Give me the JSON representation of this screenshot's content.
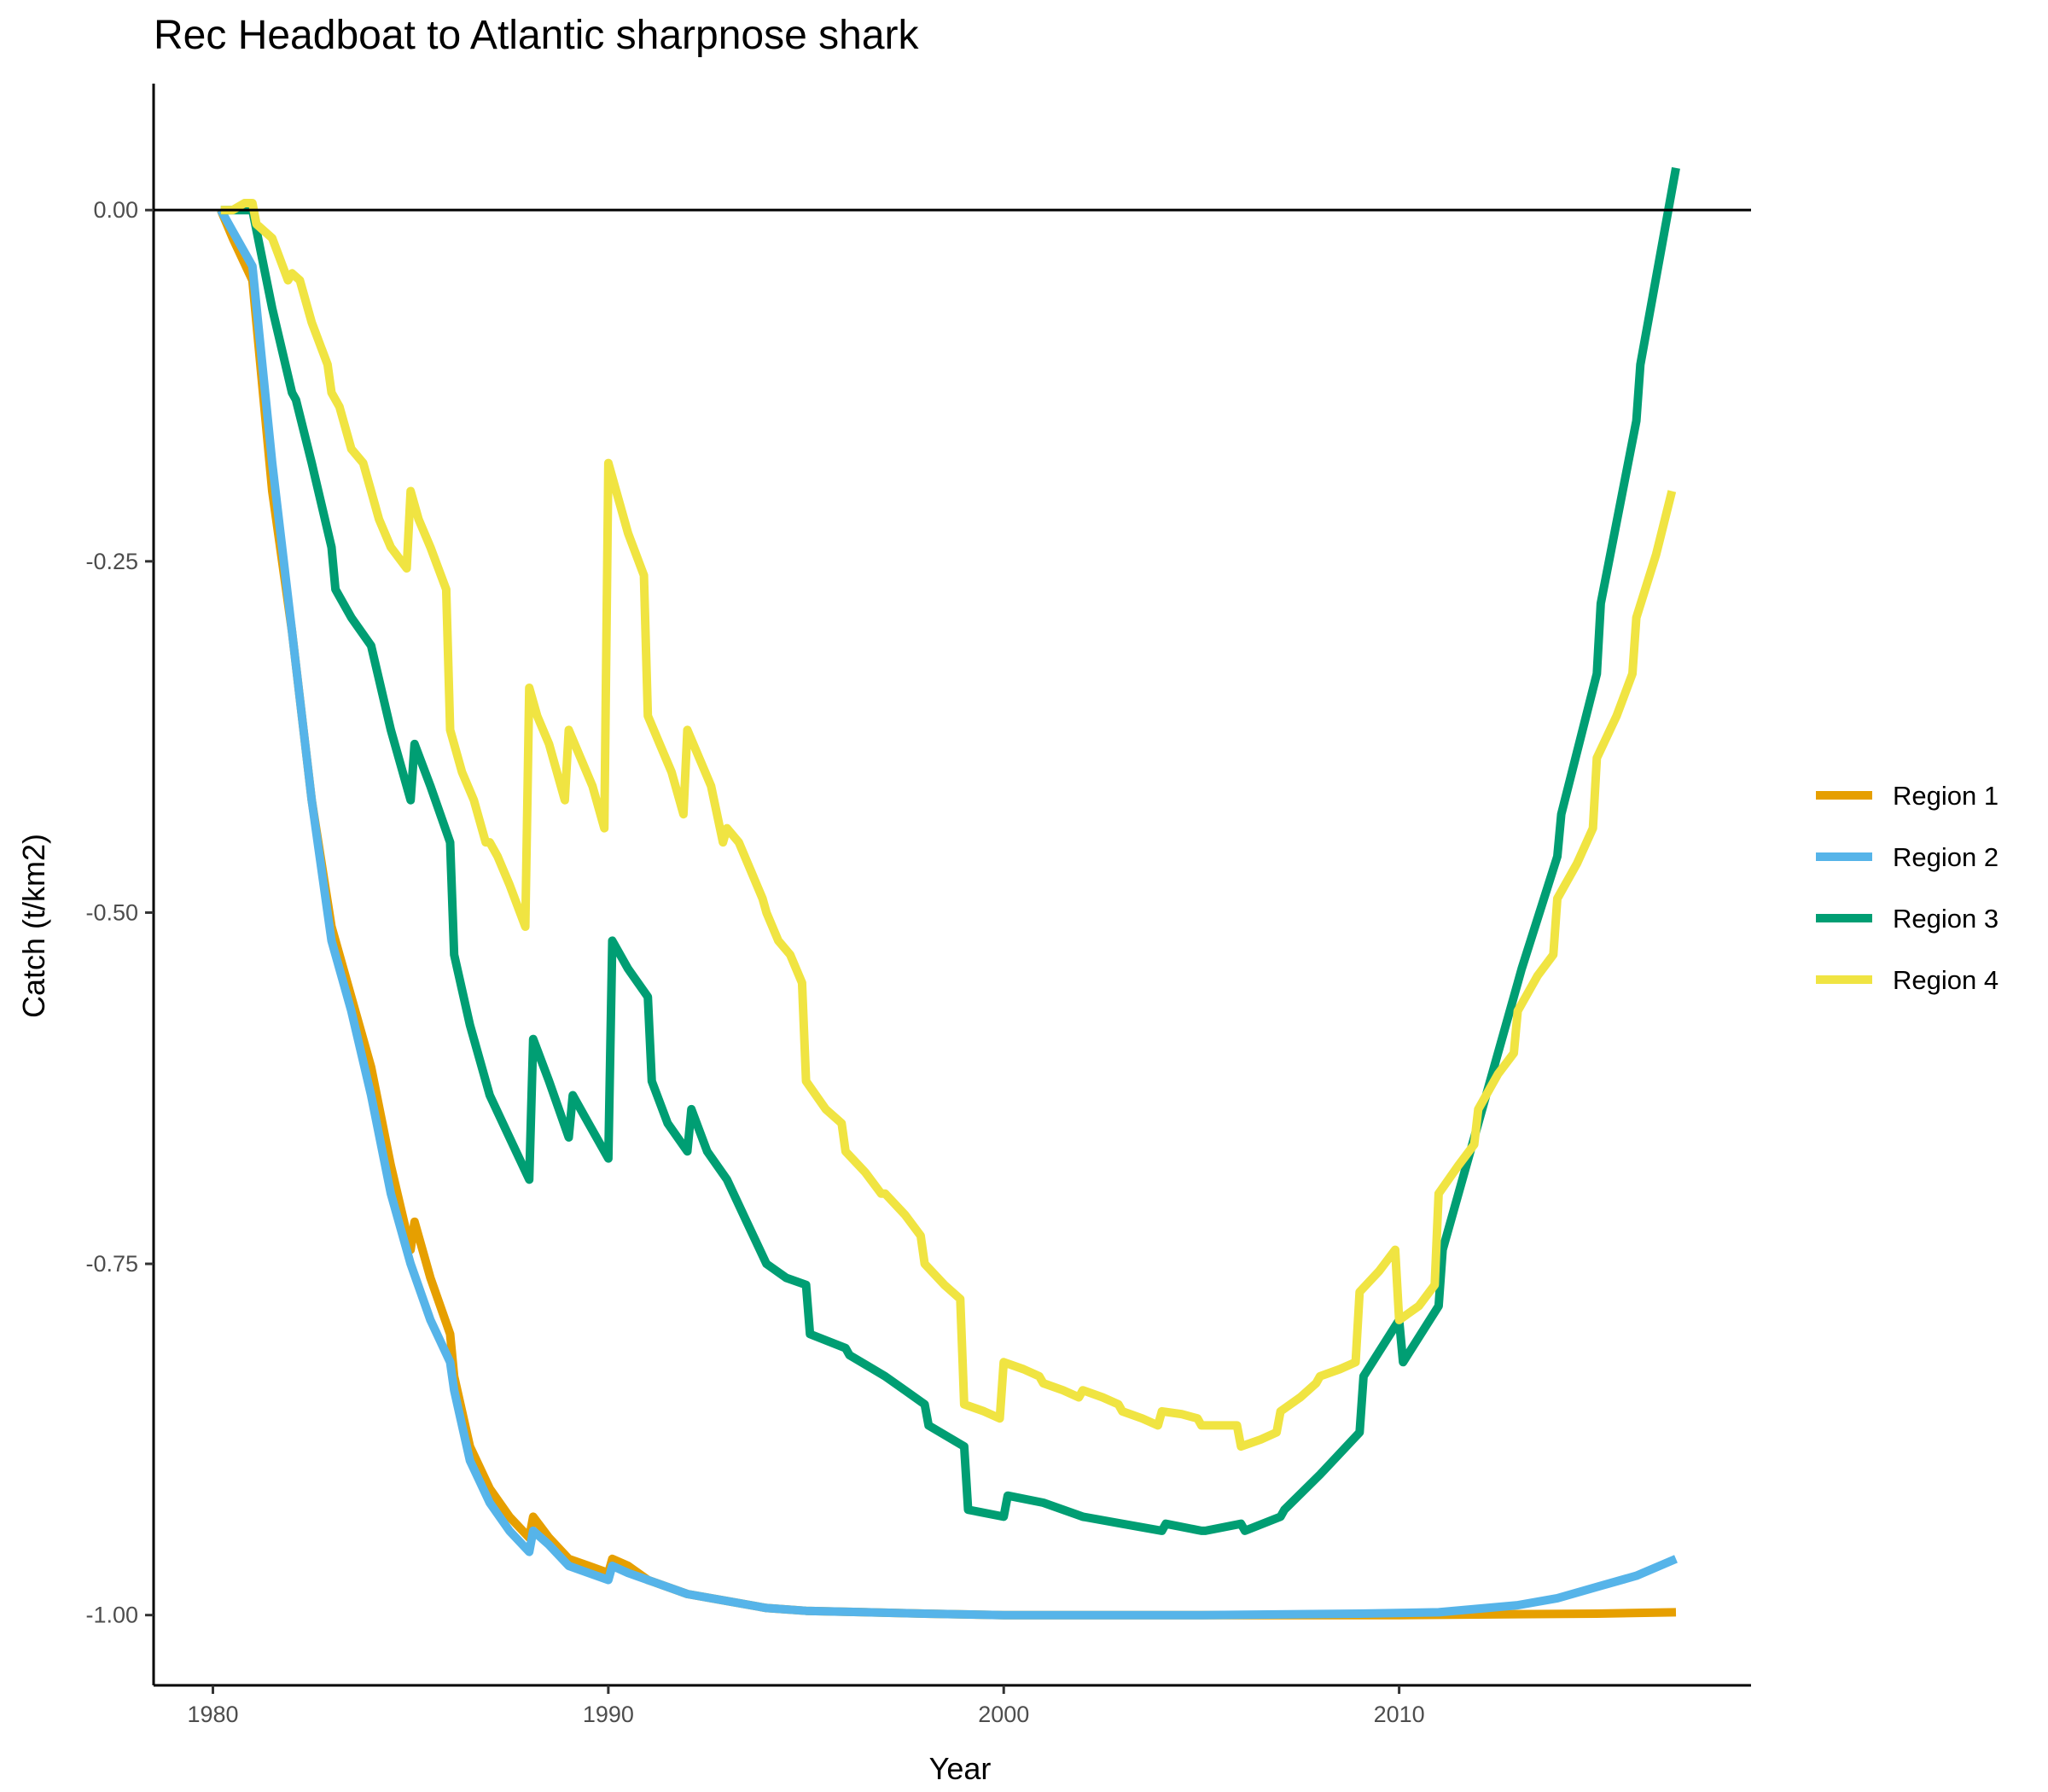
{
  "chart_data": {
    "type": "line",
    "title": "Rec Headboat to Atlantic sharpnose shark",
    "xlabel": "Year",
    "ylabel": "Catch (t/km2)",
    "xlim": [
      1978.5,
      2018.9
    ],
    "ylim": [
      -1.05,
      0.09
    ],
    "x_ticks": [
      1980,
      1990,
      2000,
      2010
    ],
    "y_ticks": [
      0.0,
      -0.25,
      -0.5,
      -0.75,
      -1.0
    ],
    "y_tick_labels": [
      "0.00",
      "-0.25",
      "-0.50",
      "-0.75",
      "-1.00"
    ],
    "reference_line_y": 0,
    "legend_position": "right",
    "series": [
      {
        "name": "Region 1",
        "color": "#E69F00",
        "points": [
          [
            1980.2,
            0.0
          ],
          [
            1980.5,
            -0.02
          ],
          [
            1981.0,
            -0.05
          ],
          [
            1981.5,
            -0.2
          ],
          [
            1982.0,
            -0.3
          ],
          [
            1982.5,
            -0.42
          ],
          [
            1983.0,
            -0.51
          ],
          [
            1983.5,
            -0.56
          ],
          [
            1984.0,
            -0.61
          ],
          [
            1984.5,
            -0.68
          ],
          [
            1985.0,
            -0.74
          ],
          [
            1985.1,
            -0.72
          ],
          [
            1985.5,
            -0.76
          ],
          [
            1986.0,
            -0.8
          ],
          [
            1986.1,
            -0.83
          ],
          [
            1986.5,
            -0.88
          ],
          [
            1987.0,
            -0.91
          ],
          [
            1987.5,
            -0.93
          ],
          [
            1988.0,
            -0.945
          ],
          [
            1988.1,
            -0.93
          ],
          [
            1988.5,
            -0.945
          ],
          [
            1989.0,
            -0.96
          ],
          [
            1989.5,
            -0.965
          ],
          [
            1990.0,
            -0.97
          ],
          [
            1990.1,
            -0.96
          ],
          [
            1990.5,
            -0.965
          ],
          [
            1991.0,
            -0.975
          ],
          [
            1992.0,
            -0.985
          ],
          [
            1993.0,
            -0.99
          ],
          [
            1994.0,
            -0.995
          ],
          [
            1995.0,
            -0.997
          ],
          [
            1998.0,
            -0.999
          ],
          [
            2000.0,
            -1.0
          ],
          [
            2005.0,
            -1.0
          ],
          [
            2010.0,
            -1.0
          ],
          [
            2015.0,
            -0.999
          ],
          [
            2017.0,
            -0.998
          ]
        ]
      },
      {
        "name": "Region 2",
        "color": "#56B4E9",
        "points": [
          [
            1980.2,
            0.0
          ],
          [
            1980.5,
            -0.015
          ],
          [
            1981.0,
            -0.04
          ],
          [
            1981.5,
            -0.18
          ],
          [
            1982.0,
            -0.3
          ],
          [
            1982.5,
            -0.42
          ],
          [
            1983.0,
            -0.52
          ],
          [
            1983.5,
            -0.57
          ],
          [
            1984.0,
            -0.63
          ],
          [
            1984.5,
            -0.7
          ],
          [
            1985.0,
            -0.75
          ],
          [
            1985.5,
            -0.79
          ],
          [
            1986.0,
            -0.82
          ],
          [
            1986.1,
            -0.84
          ],
          [
            1986.5,
            -0.89
          ],
          [
            1987.0,
            -0.92
          ],
          [
            1987.5,
            -0.94
          ],
          [
            1988.0,
            -0.955
          ],
          [
            1988.1,
            -0.94
          ],
          [
            1988.5,
            -0.95
          ],
          [
            1989.0,
            -0.965
          ],
          [
            1989.5,
            -0.97
          ],
          [
            1990.0,
            -0.975
          ],
          [
            1990.1,
            -0.965
          ],
          [
            1990.5,
            -0.97
          ],
          [
            1991.0,
            -0.975
          ],
          [
            1992.0,
            -0.985
          ],
          [
            1993.0,
            -0.99
          ],
          [
            1994.0,
            -0.995
          ],
          [
            1995.0,
            -0.997
          ],
          [
            1998.0,
            -0.999
          ],
          [
            2000.0,
            -1.0
          ],
          [
            2005.0,
            -1.0
          ],
          [
            2009.0,
            -0.999
          ],
          [
            2011.0,
            -0.998
          ],
          [
            2013.0,
            -0.993
          ],
          [
            2014.0,
            -0.988
          ],
          [
            2015.0,
            -0.98
          ],
          [
            2016.0,
            -0.972
          ],
          [
            2017.0,
            -0.96
          ]
        ]
      },
      {
        "name": "Region 3",
        "color": "#009E73",
        "points": [
          [
            1980.2,
            0.0
          ],
          [
            1981.0,
            0.0
          ],
          [
            1981.5,
            -0.07
          ],
          [
            1982.0,
            -0.13
          ],
          [
            1982.1,
            -0.135
          ],
          [
            1982.5,
            -0.18
          ],
          [
            1983.0,
            -0.24
          ],
          [
            1983.1,
            -0.27
          ],
          [
            1983.5,
            -0.29
          ],
          [
            1984.0,
            -0.31
          ],
          [
            1984.5,
            -0.37
          ],
          [
            1985.0,
            -0.42
          ],
          [
            1985.1,
            -0.38
          ],
          [
            1985.5,
            -0.41
          ],
          [
            1986.0,
            -0.45
          ],
          [
            1986.1,
            -0.53
          ],
          [
            1986.5,
            -0.58
          ],
          [
            1987.0,
            -0.63
          ],
          [
            1987.5,
            -0.66
          ],
          [
            1988.0,
            -0.69
          ],
          [
            1988.1,
            -0.59
          ],
          [
            1988.5,
            -0.62
          ],
          [
            1989.0,
            -0.66
          ],
          [
            1989.1,
            -0.63
          ],
          [
            1989.5,
            -0.65
          ],
          [
            1990.0,
            -0.675
          ],
          [
            1990.1,
            -0.52
          ],
          [
            1990.5,
            -0.54
          ],
          [
            1991.0,
            -0.56
          ],
          [
            1991.1,
            -0.62
          ],
          [
            1991.5,
            -0.65
          ],
          [
            1992.0,
            -0.67
          ],
          [
            1992.1,
            -0.64
          ],
          [
            1992.5,
            -0.67
          ],
          [
            1993.0,
            -0.69
          ],
          [
            1993.5,
            -0.72
          ],
          [
            1994.0,
            -0.75
          ],
          [
            1994.5,
            -0.76
          ],
          [
            1995.0,
            -0.765
          ],
          [
            1995.1,
            -0.8
          ],
          [
            1996.0,
            -0.81
          ],
          [
            1996.1,
            -0.815
          ],
          [
            1997.0,
            -0.83
          ],
          [
            1997.5,
            -0.84
          ],
          [
            1998.0,
            -0.85
          ],
          [
            1998.1,
            -0.865
          ],
          [
            1999.0,
            -0.88
          ],
          [
            1999.1,
            -0.925
          ],
          [
            2000.0,
            -0.93
          ],
          [
            2000.1,
            -0.915
          ],
          [
            2001.0,
            -0.92
          ],
          [
            2002.0,
            -0.93
          ],
          [
            2003.0,
            -0.935
          ],
          [
            2004.0,
            -0.94
          ],
          [
            2004.1,
            -0.935
          ],
          [
            2005.0,
            -0.94
          ],
          [
            2005.1,
            -0.94
          ],
          [
            2006.0,
            -0.935
          ],
          [
            2006.1,
            -0.94
          ],
          [
            2007.0,
            -0.93
          ],
          [
            2007.1,
            -0.925
          ],
          [
            2008.0,
            -0.9
          ],
          [
            2009.0,
            -0.87
          ],
          [
            2009.1,
            -0.83
          ],
          [
            2010.0,
            -0.79
          ],
          [
            2010.1,
            -0.82
          ],
          [
            2011.0,
            -0.78
          ],
          [
            2011.1,
            -0.74
          ],
          [
            2012.0,
            -0.65
          ],
          [
            2013.0,
            -0.55
          ],
          [
            2013.1,
            -0.54
          ],
          [
            2014.0,
            -0.46
          ],
          [
            2014.1,
            -0.43
          ],
          [
            2015.0,
            -0.33
          ],
          [
            2015.1,
            -0.28
          ],
          [
            2016.0,
            -0.15
          ],
          [
            2016.1,
            -0.11
          ],
          [
            2017.0,
            0.03
          ]
        ]
      },
      {
        "name": "Region 4",
        "color": "#F0E442",
        "points": [
          [
            1980.2,
            0.0
          ],
          [
            1980.5,
            0.0
          ],
          [
            1980.8,
            0.005
          ],
          [
            1981.0,
            0.005
          ],
          [
            1981.1,
            -0.01
          ],
          [
            1981.5,
            -0.02
          ],
          [
            1981.9,
            -0.05
          ],
          [
            1982.0,
            -0.045
          ],
          [
            1982.2,
            -0.05
          ],
          [
            1982.5,
            -0.08
          ],
          [
            1982.9,
            -0.11
          ],
          [
            1983.0,
            -0.13
          ],
          [
            1983.2,
            -0.14
          ],
          [
            1983.5,
            -0.17
          ],
          [
            1983.8,
            -0.18
          ],
          [
            1984.0,
            -0.2
          ],
          [
            1984.2,
            -0.22
          ],
          [
            1984.5,
            -0.24
          ],
          [
            1984.9,
            -0.255
          ],
          [
            1985.0,
            -0.2
          ],
          [
            1985.2,
            -0.22
          ],
          [
            1985.5,
            -0.24
          ],
          [
            1985.9,
            -0.27
          ],
          [
            1986.0,
            -0.37
          ],
          [
            1986.3,
            -0.4
          ],
          [
            1986.6,
            -0.42
          ],
          [
            1986.9,
            -0.45
          ],
          [
            1987.0,
            -0.45
          ],
          [
            1987.2,
            -0.46
          ],
          [
            1987.5,
            -0.48
          ],
          [
            1987.9,
            -0.51
          ],
          [
            1988.0,
            -0.34
          ],
          [
            1988.2,
            -0.36
          ],
          [
            1988.5,
            -0.38
          ],
          [
            1988.9,
            -0.42
          ],
          [
            1989.0,
            -0.37
          ],
          [
            1989.3,
            -0.39
          ],
          [
            1989.6,
            -0.41
          ],
          [
            1989.9,
            -0.44
          ],
          [
            1990.0,
            -0.18
          ],
          [
            1990.2,
            -0.2
          ],
          [
            1990.5,
            -0.23
          ],
          [
            1990.9,
            -0.26
          ],
          [
            1991.0,
            -0.36
          ],
          [
            1991.3,
            -0.38
          ],
          [
            1991.6,
            -0.4
          ],
          [
            1991.9,
            -0.43
          ],
          [
            1992.0,
            -0.37
          ],
          [
            1992.3,
            -0.39
          ],
          [
            1992.6,
            -0.41
          ],
          [
            1992.9,
            -0.45
          ],
          [
            1993.0,
            -0.44
          ],
          [
            1993.3,
            -0.45
          ],
          [
            1993.6,
            -0.47
          ],
          [
            1993.9,
            -0.49
          ],
          [
            1994.0,
            -0.5
          ],
          [
            1994.3,
            -0.52
          ],
          [
            1994.6,
            -0.53
          ],
          [
            1994.9,
            -0.55
          ],
          [
            1995.0,
            -0.62
          ],
          [
            1995.5,
            -0.64
          ],
          [
            1995.9,
            -0.65
          ],
          [
            1996.0,
            -0.67
          ],
          [
            1996.5,
            -0.685
          ],
          [
            1996.9,
            -0.7
          ],
          [
            1997.0,
            -0.7
          ],
          [
            1997.5,
            -0.715
          ],
          [
            1997.9,
            -0.73
          ],
          [
            1998.0,
            -0.75
          ],
          [
            1998.5,
            -0.765
          ],
          [
            1998.9,
            -0.775
          ],
          [
            1999.0,
            -0.85
          ],
          [
            1999.5,
            -0.855
          ],
          [
            1999.9,
            -0.86
          ],
          [
            2000.0,
            -0.82
          ],
          [
            2000.5,
            -0.825
          ],
          [
            2000.9,
            -0.83
          ],
          [
            2001.0,
            -0.835
          ],
          [
            2001.5,
            -0.84
          ],
          [
            2001.9,
            -0.845
          ],
          [
            2002.0,
            -0.84
          ],
          [
            2002.5,
            -0.845
          ],
          [
            2002.9,
            -0.85
          ],
          [
            2003.0,
            -0.855
          ],
          [
            2003.5,
            -0.86
          ],
          [
            2003.9,
            -0.865
          ],
          [
            2004.0,
            -0.855
          ],
          [
            2004.5,
            -0.857
          ],
          [
            2004.9,
            -0.86
          ],
          [
            2005.0,
            -0.865
          ],
          [
            2005.5,
            -0.865
          ],
          [
            2005.9,
            -0.865
          ],
          [
            2006.0,
            -0.88
          ],
          [
            2006.5,
            -0.875
          ],
          [
            2006.9,
            -0.87
          ],
          [
            2007.0,
            -0.855
          ],
          [
            2007.5,
            -0.845
          ],
          [
            2007.9,
            -0.835
          ],
          [
            2008.0,
            -0.83
          ],
          [
            2008.5,
            -0.825
          ],
          [
            2008.9,
            -0.82
          ],
          [
            2009.0,
            -0.77
          ],
          [
            2009.5,
            -0.755
          ],
          [
            2009.9,
            -0.74
          ],
          [
            2010.0,
            -0.79
          ],
          [
            2010.5,
            -0.78
          ],
          [
            2010.9,
            -0.765
          ],
          [
            2011.0,
            -0.7
          ],
          [
            2011.5,
            -0.68
          ],
          [
            2011.9,
            -0.665
          ],
          [
            2012.0,
            -0.64
          ],
          [
            2012.5,
            -0.615
          ],
          [
            2012.9,
            -0.6
          ],
          [
            2013.0,
            -0.57
          ],
          [
            2013.5,
            -0.545
          ],
          [
            2013.9,
            -0.53
          ],
          [
            2014.0,
            -0.49
          ],
          [
            2014.5,
            -0.465
          ],
          [
            2014.9,
            -0.44
          ],
          [
            2015.0,
            -0.39
          ],
          [
            2015.5,
            -0.36
          ],
          [
            2015.9,
            -0.33
          ],
          [
            2016.0,
            -0.29
          ],
          [
            2016.5,
            -0.245
          ],
          [
            2016.9,
            -0.2
          ]
        ]
      }
    ]
  }
}
